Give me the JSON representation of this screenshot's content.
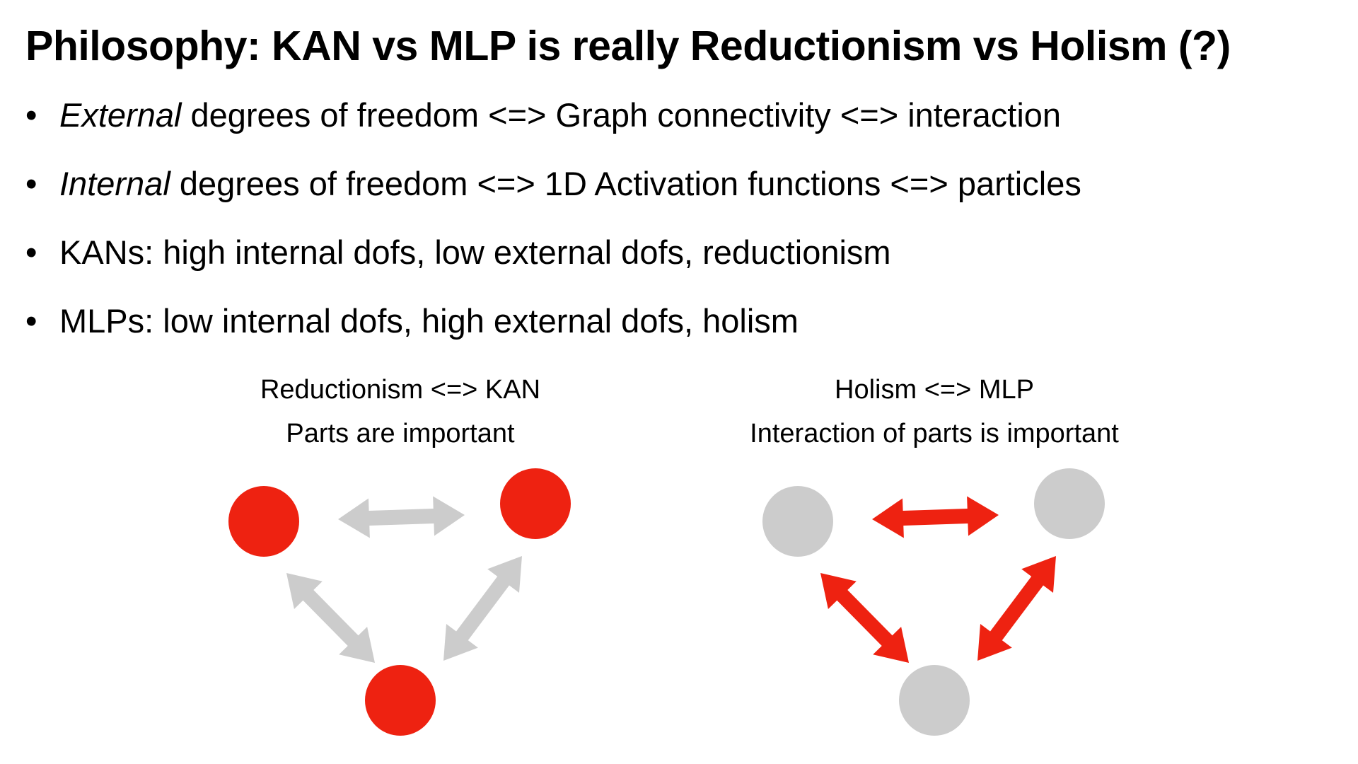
{
  "title": "Philosophy: KAN vs MLP is really Reductionism vs Holism (?)",
  "bullets": [
    {
      "em": "External",
      "rest": " degrees of freedom <=> Graph connectivity <=> interaction"
    },
    {
      "em": "Internal",
      "rest": " degrees of freedom <=> 1D Activation functions <=> particles"
    },
    {
      "em": "",
      "rest": "KANs: high internal dofs, low external dofs, reductionism"
    },
    {
      "em": "",
      "rest": "MLPs: low internal dofs, high external dofs, holism"
    }
  ],
  "bullet_symbol": "•",
  "left_diagram": {
    "heading": "Reductionism <=> KAN",
    "subheading": "Parts are important",
    "node_color": "#ee2211",
    "arrow_color": "#cccccc"
  },
  "right_diagram": {
    "heading": "Holism <=> MLP",
    "subheading": "Interaction of parts is important",
    "node_color": "#cccccc",
    "arrow_color": "#ee2211"
  }
}
